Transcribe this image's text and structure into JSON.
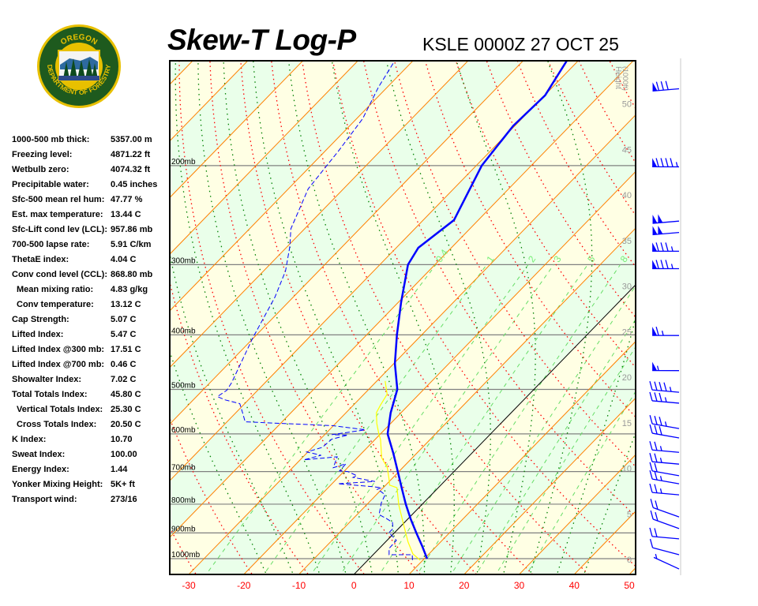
{
  "logo": {
    "top_text": "OREGON",
    "bottom_text": "DEPARTMENT OF FORESTRY",
    "colors": {
      "ring": "#1e5a1e",
      "border": "#e8c000"
    }
  },
  "header": {
    "title": "Skew-T Log-P",
    "station": "KSLE 0000Z 27 OCT 25"
  },
  "stats": [
    {
      "label": "1000-500 mb thick:",
      "value": "5357.00 m"
    },
    {
      "label": "Freezing level:",
      "value": "4871.22 ft"
    },
    {
      "label": "Wetbulb zero:",
      "value": "4074.32 ft"
    },
    {
      "label": "Precipitable water:",
      "value": "0.45 inches"
    },
    {
      "label": "Sfc-500 mean rel hum:",
      "value": "47.77 %"
    },
    {
      "label": "Est. max temperature:",
      "value": "13.44 C"
    },
    {
      "label": "Sfc-Lift cond lev (LCL):",
      "value": "957.86 mb"
    },
    {
      "label": "700-500 lapse rate:",
      "value": "5.91 C/km"
    },
    {
      "label": "ThetaE index:",
      "value": "4.04 C"
    },
    {
      "label": "Conv cond level (CCL):",
      "value": "868.80 mb"
    },
    {
      "label": "Mean mixing ratio:",
      "value": "4.83 g/kg",
      "indent": true
    },
    {
      "label": "Conv temperature:",
      "value": "13.12 C",
      "indent": true
    },
    {
      "label": "Cap Strength:",
      "value": "5.07 C"
    },
    {
      "label": "Lifted Index:",
      "value": "5.47 C"
    },
    {
      "label": "Lifted Index @300 mb:",
      "value": "17.51 C"
    },
    {
      "label": "Lifted Index @700 mb:",
      "value": "0.46 C"
    },
    {
      "label": "Showalter Index:",
      "value": "7.02 C"
    },
    {
      "label": "Total Totals Index:",
      "value": "45.80 C"
    },
    {
      "label": "Vertical Totals Index:",
      "value": "25.30 C",
      "indent": true
    },
    {
      "label": "Cross Totals Index:",
      "value": "20.50 C",
      "indent": true
    },
    {
      "label": "K Index:",
      "value": "10.70"
    },
    {
      "label": "Sweat Index:",
      "value": "100.00"
    },
    {
      "label": "Energy Index:",
      "value": "1.44"
    },
    {
      "label": "Yonker Mixing Height:",
      "value": "5K+ ft"
    },
    {
      "label": "Transport wind:",
      "value": "273/16"
    }
  ],
  "chart_data": {
    "type": "line",
    "subtype": "skew-t log-p",
    "x_axis": {
      "unit": "C",
      "ticks": [
        -30,
        -20,
        -10,
        0,
        10,
        20,
        30,
        40,
        50
      ],
      "tick_color": "#ff0000",
      "xlim": [
        -33.5,
        51
      ]
    },
    "y_axis": {
      "scale": "log",
      "unit": "mb",
      "ylim": [
        1067,
        130
      ],
      "ticks": [
        {
          "p": 200,
          "label": "200mb"
        },
        {
          "p": 300,
          "label": "300mb"
        },
        {
          "p": 400,
          "label": "400mb"
        },
        {
          "p": 500,
          "label": "500mb"
        },
        {
          "p": 600,
          "label": "600mb"
        },
        {
          "p": 700,
          "label": "700mb"
        },
        {
          "p": 800,
          "label": "800mb"
        },
        {
          "p": 900,
          "label": "900mb"
        },
        {
          "p": 1000,
          "label": "1000mb"
        }
      ]
    },
    "height_axis": {
      "title": "Height",
      "unit_label": "(1000ft)",
      "ticks": [
        0,
        5,
        10,
        15,
        20,
        25,
        30,
        35,
        40,
        45,
        50
      ]
    },
    "mixing_ratio_labels": [
      "0.4",
      "1",
      "2",
      "3",
      "5",
      "8"
    ],
    "mixing_ratio_values": [
      0.4,
      1,
      2,
      3,
      5,
      8,
      12,
      16,
      20,
      28
    ],
    "background": {
      "band_colors": [
        "#ffffe4",
        "#eaffea"
      ],
      "isotherm_color": "#ff8000",
      "zero_isotherm_color": "#000000",
      "dry_adiabat_color": "#ff0000",
      "moist_adiabat_color": "#008000",
      "mixing_ratio_color": "#66dd66",
      "isobar_color": "#808080"
    },
    "grid": true,
    "series": [
      {
        "color": "#0000ff",
        "style": "solid",
        "points": [
          [
            1000,
            10.5
          ],
          [
            950,
            7.4
          ],
          [
            900,
            4.0
          ],
          [
            850,
            0.5
          ],
          [
            800,
            -3.0
          ],
          [
            750,
            -6.5
          ],
          [
            700,
            -10.2
          ],
          [
            650,
            -14.2
          ],
          [
            600,
            -18.7
          ],
          [
            550,
            -21.9
          ],
          [
            500,
            -24.8
          ],
          [
            450,
            -29.8
          ],
          [
            400,
            -34.5
          ],
          [
            350,
            -39.5
          ],
          [
            300,
            -44.9
          ],
          [
            280,
            -46.0
          ],
          [
            250,
            -44.4
          ],
          [
            200,
            -49.0
          ],
          [
            170,
            -50.3
          ],
          [
            150,
            -49.9
          ],
          [
            130,
            -52.1
          ]
        ]
      },
      {
        "color": "#0000ff",
        "style": "dashed",
        "points": [
          [
            1006,
            8.1
          ],
          [
            984,
            7.1
          ],
          [
            984,
            2.9
          ],
          [
            959,
            1.8
          ],
          [
            928,
            1.7
          ],
          [
            899,
            -1.0
          ],
          [
            884,
            -1.0
          ],
          [
            862,
            -2.2
          ],
          [
            849,
            -3.9
          ],
          [
            835,
            -6.0
          ],
          [
            795,
            -7.7
          ],
          [
            770,
            -8.4
          ],
          [
            760,
            -9.7
          ],
          [
            753,
            -10.8
          ],
          [
            748,
            -10.3
          ],
          [
            745,
            -11.9
          ],
          [
            736,
            -18.9
          ],
          [
            729,
            -12.6
          ],
          [
            717,
            -17.3
          ],
          [
            712,
            -16.9
          ],
          [
            700,
            -19.3
          ],
          [
            698,
            -20.9
          ],
          [
            678,
            -21.0
          ],
          [
            689,
            -22.6
          ],
          [
            659,
            -23.8
          ],
          [
            667,
            -29.3
          ],
          [
            655,
            -27.0
          ],
          [
            646,
            -30.2
          ],
          [
            634,
            -28.2
          ],
          [
            613,
            -27.9
          ],
          [
            603,
            -25.7
          ],
          [
            602,
            -28.7
          ],
          [
            590,
            -23.5
          ],
          [
            580,
            -30.2
          ],
          [
            571,
            -46.7
          ],
          [
            550,
            -48.8
          ],
          [
            530,
            -50.9
          ],
          [
            522,
            -54.2
          ],
          [
            515,
            -56.2
          ],
          [
            502,
            -55.6
          ],
          [
            486,
            -56.1
          ],
          [
            404,
            -60.2
          ],
          [
            343,
            -63.3
          ],
          [
            308,
            -66.0
          ],
          [
            279,
            -69.5
          ],
          [
            259,
            -72.5
          ],
          [
            220,
            -76.4
          ],
          [
            188,
            -77.6
          ],
          [
            165,
            -78.9
          ],
          [
            145,
            -81.6
          ],
          [
            131,
            -83.2
          ]
        ]
      },
      {
        "color": "#ffff00",
        "style": "solid",
        "points": [
          [
            1006,
            9.5
          ],
          [
            981,
            7.1
          ],
          [
            934,
            4.1
          ],
          [
            876,
            0.6
          ],
          [
            803,
            -4.1
          ],
          [
            748,
            -7.5
          ],
          [
            740,
            -9.3
          ],
          [
            720,
            -10.6
          ],
          [
            689,
            -12.8
          ],
          [
            661,
            -15.6
          ],
          [
            614,
            -19.0
          ],
          [
            600,
            -20.3
          ],
          [
            575,
            -22.5
          ],
          [
            550,
            -24.5
          ],
          [
            533,
            -25.1
          ],
          [
            510,
            -25.8
          ],
          [
            483,
            -28.5
          ]
        ]
      }
    ],
    "wind_barbs": [
      {
        "p": 146,
        "dir": 280,
        "kt": 80
      },
      {
        "p": 201,
        "dir": 275,
        "kt": 95
      },
      {
        "p": 251,
        "dir": 280,
        "kt": 100
      },
      {
        "p": 263,
        "dir": 280,
        "kt": 100
      },
      {
        "p": 284,
        "dir": 275,
        "kt": 85
      },
      {
        "p": 305,
        "dir": 275,
        "kt": 85
      },
      {
        "p": 401,
        "dir": 275,
        "kt": 65
      },
      {
        "p": 463,
        "dir": 275,
        "kt": 55
      },
      {
        "p": 506,
        "dir": 270,
        "kt": 45
      },
      {
        "p": 529,
        "dir": 270,
        "kt": 35
      },
      {
        "p": 587,
        "dir": 265,
        "kt": 35
      },
      {
        "p": 610,
        "dir": 265,
        "kt": 30
      },
      {
        "p": 647,
        "dir": 270,
        "kt": 25
      },
      {
        "p": 679,
        "dir": 270,
        "kt": 25
      },
      {
        "p": 712,
        "dir": 265,
        "kt": 20
      },
      {
        "p": 736,
        "dir": 265,
        "kt": 25
      },
      {
        "p": 770,
        "dir": 270,
        "kt": 25
      },
      {
        "p": 843,
        "dir": 255,
        "kt": 20
      },
      {
        "p": 884,
        "dir": 255,
        "kt": 20
      },
      {
        "p": 922,
        "dir": 270,
        "kt": 20
      },
      {
        "p": 984,
        "dir": 260,
        "kt": 10
      },
      {
        "p": 1043,
        "dir": 250,
        "kt": 5
      }
    ]
  }
}
